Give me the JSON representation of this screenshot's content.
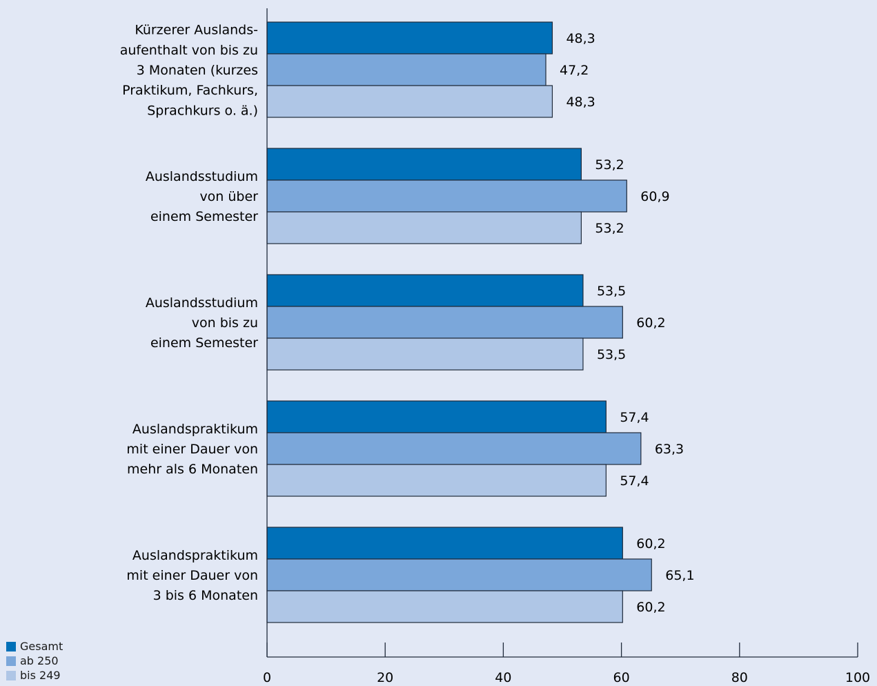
{
  "chart_data": {
    "type": "bar",
    "orientation": "horizontal",
    "categories": [
      [
        "Kürzerer Auslands-",
        "aufenthalt von bis zu",
        "3 Monaten (kurzes",
        "Praktikum, Fachkurs,",
        "Sprachkurs o. ä.)"
      ],
      [
        "Auslandsstudium",
        "von über",
        "einem Semester"
      ],
      [
        "Auslandsstudium",
        "von bis zu",
        "einem Semester"
      ],
      [
        "Auslandspraktikum",
        "mit einer Dauer von",
        "mehr als 6 Monaten"
      ],
      [
        "Auslandspraktikum",
        "mit einer Dauer von",
        "3 bis 6 Monaten"
      ]
    ],
    "series": [
      {
        "name": "Gesamt",
        "color": "#0070b8",
        "values": [
          48.3,
          53.2,
          53.5,
          57.4,
          60.2
        ],
        "labels": [
          "48,3",
          "53,2",
          "53,5",
          "57,4",
          "60,2"
        ]
      },
      {
        "name": "ab 250",
        "color": "#7ba7da",
        "values": [
          47.2,
          60.9,
          60.2,
          63.3,
          65.1
        ],
        "labels": [
          "47,2",
          "60,9",
          "60,2",
          "63,3",
          "65,1"
        ]
      },
      {
        "name": "bis 249",
        "color": "#afc6e6",
        "values": [
          48.3,
          53.2,
          53.5,
          57.4,
          60.2
        ],
        "labels": [
          "48,3",
          "53,2",
          "53,5",
          "57,4",
          "60,2"
        ]
      }
    ],
    "xlim": [
      0,
      100
    ],
    "ticks": [
      0,
      20,
      40,
      60,
      80,
      100
    ],
    "tick_labels": [
      "0",
      "20",
      "40",
      "60",
      "80",
      "100"
    ],
    "legend_position": "bottom-left",
    "grid": false
  }
}
